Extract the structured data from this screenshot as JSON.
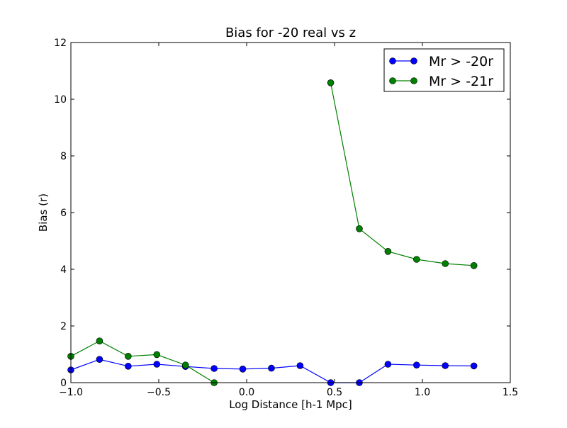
{
  "chart_data": {
    "type": "line",
    "title": "Bias for -20 real vs z",
    "xlabel": "Log Distance [h-1 Mpc]",
    "ylabel": "Bias (r)",
    "xlim": [
      -1.0,
      1.5
    ],
    "ylim": [
      0,
      12
    ],
    "xticks": [
      -1.0,
      -0.5,
      0.0,
      0.5,
      1.0,
      1.5
    ],
    "xtick_labels": [
      "−1.0",
      "−0.5",
      "0.0",
      "0.5",
      "1.0",
      "1.5"
    ],
    "yticks": [
      0,
      2,
      4,
      6,
      8,
      10,
      12
    ],
    "ytick_labels": [
      "0",
      "2",
      "4",
      "6",
      "8",
      "10",
      "12"
    ],
    "grid": false,
    "legend_position": "top-right",
    "series": [
      {
        "name": "Mr > -20r",
        "color": "#0000ff",
        "x": [
          -1.0,
          -0.837,
          -0.674,
          -0.511,
          -0.348,
          -0.185,
          -0.022,
          0.141,
          0.304,
          0.478,
          0.641,
          0.804,
          0.967,
          1.13,
          1.293
        ],
        "y": [
          0.45,
          0.82,
          0.58,
          0.65,
          0.57,
          0.5,
          0.48,
          0.51,
          0.6,
          0.0,
          0.0,
          0.65,
          0.62,
          0.6,
          0.59
        ]
      },
      {
        "name": "Mr > -21r",
        "color": "#008000",
        "segments": [
          {
            "x": [
              -1.0,
              -0.837,
              -0.674,
              -0.511,
              -0.348,
              -0.185
            ],
            "y": [
              0.93,
              1.47,
              0.93,
              0.99,
              0.62,
              0.0
            ]
          },
          {
            "x": [
              0.478,
              0.641,
              0.804,
              0.967,
              1.13,
              1.293
            ],
            "y": [
              10.58,
              5.43,
              4.63,
              4.35,
              4.2,
              4.13
            ]
          }
        ]
      }
    ]
  }
}
